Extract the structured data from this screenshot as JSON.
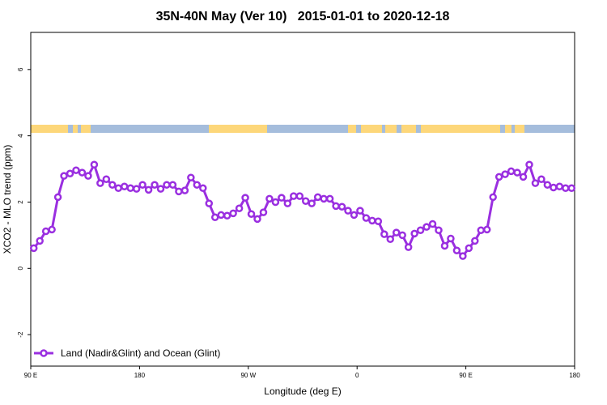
{
  "chart_data": {
    "type": "line",
    "title": "35N-40N May (Ver 10)   2015-01-01 to 2020-12-18",
    "x_label": "Longitude (deg E)",
    "y_label": "XCO2 - MLO trend (ppm)",
    "xlim": [
      90,
      540
    ],
    "ylim": [
      -2.95,
      7.12
    ],
    "xticks": [
      {
        "value": 90,
        "label": "90 E"
      },
      180,
      {
        "value": 270,
        "label": "90 W"
      },
      {
        "value": 360,
        "label": "0"
      },
      {
        "value": 450,
        "label": "90 E"
      },
      {
        "value": 540,
        "label": "180"
      }
    ],
    "yticks": [
      -2,
      0,
      2,
      4,
      6
    ],
    "grid": false,
    "legend": "lower left",
    "x": [
      92.5,
      97.5,
      102.5,
      107.5,
      112.5,
      117.5,
      122.5,
      127.5,
      132.5,
      137.5,
      142.5,
      147.5,
      152.5,
      157.5,
      162.5,
      167.5,
      172.5,
      177.5,
      182.5,
      187.5,
      192.5,
      197.5,
      202.5,
      207.5,
      212.5,
      217.5,
      222.5,
      227.5,
      232.5,
      237.5,
      242.5,
      247.5,
      252.5,
      257.5,
      262.5,
      267.5,
      272.5,
      277.5,
      282.5,
      287.5,
      292.5,
      297.5,
      302.5,
      307.5,
      312.5,
      317.5,
      322.5,
      327.5,
      332.5,
      337.5,
      342.5,
      347.5,
      352.5,
      357.5,
      362.5,
      367.5,
      372.5,
      377.5,
      382.5,
      387.5,
      392.5,
      397.5,
      402.5,
      407.5,
      412.5,
      417.5,
      422.5,
      427.5,
      432.5,
      437.5,
      442.5,
      447.5,
      452.5,
      457.5,
      462.5,
      467.5,
      472.5,
      477.5,
      482.5,
      487.5,
      492.5,
      497.5,
      502.5,
      507.5,
      512.5,
      517.5,
      522.5,
      527.5,
      532.5,
      537.5
    ],
    "series": [
      {
        "name": "Land (Nadir&Glint) and Ocean (Glint)",
        "color": "#9a2fe0",
        "values": [
          0.61,
          0.83,
          1.12,
          1.17,
          2.15,
          2.79,
          2.86,
          2.96,
          2.89,
          2.79,
          3.13,
          2.57,
          2.69,
          2.52,
          2.42,
          2.47,
          2.42,
          2.4,
          2.52,
          2.37,
          2.52,
          2.4,
          2.52,
          2.52,
          2.32,
          2.35,
          2.74,
          2.52,
          2.42,
          1.96,
          1.54,
          1.61,
          1.59,
          1.66,
          1.81,
          2.13,
          1.64,
          1.49,
          1.69,
          2.1,
          2.0,
          2.13,
          1.96,
          2.18,
          2.18,
          2.03,
          1.96,
          2.15,
          2.1,
          2.1,
          1.88,
          1.86,
          1.74,
          1.61,
          1.74,
          1.52,
          1.44,
          1.42,
          1.03,
          0.88,
          1.08,
          1.0,
          0.64,
          1.05,
          1.15,
          1.25,
          1.34,
          1.15,
          0.68,
          0.9,
          0.54,
          0.37,
          0.61,
          0.83,
          1.15,
          1.17,
          2.15,
          2.76,
          2.84,
          2.93,
          2.89,
          2.76,
          3.13,
          2.57,
          2.69,
          2.52,
          2.44,
          2.47,
          2.42,
          2.42
        ]
      }
    ]
  }
}
